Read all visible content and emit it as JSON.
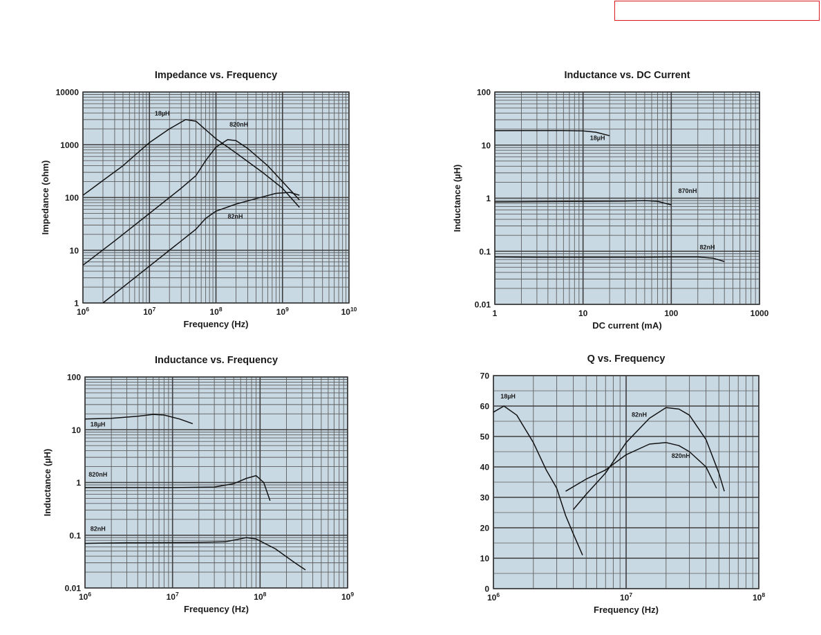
{
  "header": {
    "box_color": "#e0161e"
  },
  "colors": {
    "plot_bg": "#c9d9e4",
    "grid_major": "#3d3d3d",
    "grid_minor": "#5c5c5c",
    "curve": "#111111"
  },
  "chart_data": [
    {
      "type": "line",
      "title": "Impedance vs. Frequency",
      "xlabel": "Frequency (Hz)",
      "ylabel": "Impedance (ohm)",
      "xscale": "log",
      "yscale": "log",
      "xlim": [
        1000000,
        10000000000
      ],
      "ylim": [
        1,
        10000
      ],
      "xticks": [
        {
          "v": 1000000,
          "b": "10",
          "e": "6"
        },
        {
          "v": 10000000,
          "b": "10",
          "e": "7"
        },
        {
          "v": 100000000,
          "b": "10",
          "e": "8"
        },
        {
          "v": 1000000000,
          "b": "10",
          "e": "9"
        },
        {
          "v": 10000000000,
          "b": "10",
          "e": "10"
        }
      ],
      "yticks": [
        {
          "v": 1,
          "label": "1"
        },
        {
          "v": 10,
          "label": "10"
        },
        {
          "v": 100,
          "label": "100"
        },
        {
          "v": 1000,
          "label": "1000"
        },
        {
          "v": 10000,
          "label": "10000"
        }
      ],
      "series": [
        {
          "name": "18µH",
          "label_at": [
            12000000,
            3600
          ],
          "x": [
            1000000,
            2000000,
            4000000,
            10000000,
            20000000,
            35000000,
            50000000,
            100000000,
            200000000,
            500000000,
            1000000000,
            1800000000
          ],
          "y": [
            110,
            210,
            400,
            1100,
            2000,
            3000,
            2800,
            1300,
            700,
            300,
            150,
            65
          ]
        },
        {
          "name": "820nH",
          "label_at": [
            160000000,
            2200
          ],
          "x": [
            1000000,
            3000000,
            10000000,
            30000000,
            50000000,
            70000000,
            100000000,
            150000000,
            200000000,
            300000000,
            600000000,
            1000000000,
            1800000000
          ],
          "y": [
            5.2,
            15,
            50,
            150,
            260,
            500,
            900,
            1250,
            1200,
            850,
            400,
            200,
            90
          ]
        },
        {
          "name": "82nH",
          "label_at": [
            150000000,
            40
          ],
          "x": [
            2000000,
            5000000,
            10000000,
            30000000,
            50000000,
            70000000,
            100000000,
            200000000,
            400000000,
            800000000,
            1300000000,
            1800000000
          ],
          "y": [
            1,
            2.5,
            5,
            15,
            25,
            40,
            55,
            75,
            95,
            120,
            125,
            110
          ]
        }
      ]
    },
    {
      "type": "line",
      "title": "Inductance vs. DC Current",
      "xlabel": "DC current (mA)",
      "ylabel": "Inductance (µH)",
      "xscale": "log",
      "yscale": "log",
      "xlim": [
        1,
        1000
      ],
      "ylim": [
        0.01,
        100
      ],
      "xticks": [
        {
          "v": 1,
          "label": "1"
        },
        {
          "v": 10,
          "label": "10"
        },
        {
          "v": 100,
          "label": "100"
        },
        {
          "v": 1000,
          "label": "1000"
        }
      ],
      "yticks": [
        {
          "v": 0.01,
          "label": "0.01"
        },
        {
          "v": 0.1,
          "label": "0.1"
        },
        {
          "v": 1,
          "label": "1"
        },
        {
          "v": 10,
          "label": "10"
        },
        {
          "v": 100,
          "label": "100"
        }
      ],
      "series": [
        {
          "name": "18µH",
          "label_at": [
            12,
            12.5
          ],
          "x": [
            1,
            3,
            6,
            10,
            14,
            20
          ],
          "y": [
            18.7,
            18.8,
            18.8,
            18.5,
            17.5,
            15
          ]
        },
        {
          "name": "870nH",
          "label_at": [
            120,
            1.25
          ],
          "x": [
            1,
            3,
            10,
            30,
            50,
            70,
            100
          ],
          "y": [
            0.85,
            0.86,
            0.87,
            0.88,
            0.9,
            0.87,
            0.75
          ]
        },
        {
          "name": "82nH",
          "label_at": [
            210,
            0.108
          ],
          "x": [
            1,
            3,
            10,
            50,
            100,
            200,
            300,
            400
          ],
          "y": [
            0.078,
            0.077,
            0.077,
            0.077,
            0.078,
            0.078,
            0.074,
            0.064
          ]
        }
      ]
    },
    {
      "type": "line",
      "title": "Inductance vs. Frequency",
      "xlabel": "Frequency (Hz)",
      "ylabel": "Inductance (µH)",
      "xscale": "log",
      "yscale": "log",
      "xlim": [
        1000000,
        1000000000
      ],
      "ylim": [
        0.01,
        100
      ],
      "xticks": [
        {
          "v": 1000000,
          "b": "10",
          "e": "6"
        },
        {
          "v": 10000000,
          "b": "10",
          "e": "7"
        },
        {
          "v": 100000000,
          "b": "10",
          "e": "8"
        },
        {
          "v": 1000000000,
          "b": "10",
          "e": "9"
        }
      ],
      "yticks": [
        {
          "v": 0.01,
          "label": "0.01"
        },
        {
          "v": 0.1,
          "label": "0.1"
        },
        {
          "v": 1,
          "label": "1"
        },
        {
          "v": 10,
          "label": "10"
        },
        {
          "v": 100,
          "label": "100"
        }
      ],
      "series": [
        {
          "name": "18µH",
          "label_at": [
            1150000,
            11.5
          ],
          "x": [
            1000000,
            2000000,
            4000000,
            6000000,
            8000000,
            12000000,
            17000000
          ],
          "y": [
            16,
            16.5,
            18,
            19.5,
            19,
            16,
            13
          ]
        },
        {
          "name": "820nH",
          "label_at": [
            1100000,
            1.3
          ],
          "x": [
            1000000,
            3000000,
            10000000,
            30000000,
            50000000,
            70000000,
            90000000,
            110000000,
            130000000
          ],
          "y": [
            0.8,
            0.8,
            0.8,
            0.82,
            0.95,
            1.2,
            1.35,
            1.0,
            0.45
          ]
        },
        {
          "name": "82nH",
          "label_at": [
            1150000,
            0.12
          ],
          "x": [
            1000000,
            3000000,
            4000000,
            17000000,
            40000000,
            70000000,
            90000000,
            150000000,
            250000000,
            330000000
          ],
          "y": [
            0.07,
            0.072,
            0.072,
            0.073,
            0.075,
            0.09,
            0.085,
            0.055,
            0.03,
            0.022
          ]
        }
      ]
    },
    {
      "type": "line",
      "title": "Q vs. Frequency",
      "xlabel": "Frequency (Hz)",
      "ylabel": "",
      "xscale": "log",
      "yscale": "linear",
      "xlim": [
        1000000,
        100000000
      ],
      "ylim": [
        0,
        70
      ],
      "xticks": [
        {
          "v": 1000000,
          "b": "10",
          "e": "6"
        },
        {
          "v": 10000000,
          "b": "10",
          "e": "7"
        },
        {
          "v": 100000000,
          "b": "10",
          "e": "8"
        }
      ],
      "yticks": [
        {
          "v": 0,
          "label": "0"
        },
        {
          "v": 10,
          "label": "10"
        },
        {
          "v": 20,
          "label": "20"
        },
        {
          "v": 30,
          "label": "30"
        },
        {
          "v": 40,
          "label": "40"
        },
        {
          "v": 50,
          "label": "50"
        },
        {
          "v": 60,
          "label": "60"
        },
        {
          "v": 70,
          "label": "70"
        }
      ],
      "series": [
        {
          "name": "18µH",
          "label_at": [
            1130000,
            62.5
          ],
          "x": [
            1000000,
            1200000,
            1500000,
            2000000,
            2500000,
            3000000,
            3500000,
            4000000,
            4700000
          ],
          "y": [
            58,
            60,
            57,
            48,
            39,
            33,
            24,
            18,
            11
          ]
        },
        {
          "name": "82nH",
          "label_at": [
            11000000,
            56.5
          ],
          "x": [
            4000000,
            5000000,
            7000000,
            10000000,
            15000000,
            20000000,
            25000000,
            30000000,
            40000000,
            50000000,
            55000000
          ],
          "y": [
            26,
            31,
            38,
            48,
            56,
            59.5,
            59,
            57,
            49,
            38,
            32
          ]
        },
        {
          "name": "820nH",
          "label_at": [
            22000000,
            43
          ],
          "x": [
            3500000,
            5000000,
            7000000,
            10000000,
            15000000,
            20000000,
            25000000,
            30000000,
            40000000,
            48000000
          ],
          "y": [
            32,
            36,
            39,
            44,
            47.5,
            48,
            47,
            45,
            40,
            33
          ]
        }
      ]
    }
  ]
}
